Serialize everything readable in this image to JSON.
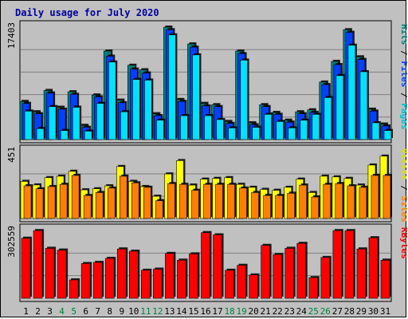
{
  "chart_data": {
    "type": "bar",
    "title": "Daily usage for July 2020",
    "categories": [
      "1",
      "2",
      "3",
      "4",
      "5",
      "6",
      "7",
      "8",
      "9",
      "10",
      "11",
      "12",
      "13",
      "14",
      "15",
      "16",
      "17",
      "18",
      "19",
      "20",
      "21",
      "22",
      "23",
      "24",
      "25",
      "26",
      "27",
      "28",
      "29",
      "30",
      "31"
    ],
    "weekend_days": [
      "4",
      "5",
      "11",
      "12",
      "18",
      "19",
      "25",
      "26"
    ],
    "panels": [
      {
        "id": "hits-files-pages",
        "max_label": "17403",
        "ymax": 17403,
        "right_labels": [
          {
            "text": "Pages",
            "color": "#00c0d0"
          },
          {
            "text": " / ",
            "color": "#000000"
          },
          {
            "text": "Files",
            "color": "#0040ff"
          },
          {
            "text": " / ",
            "color": "#000000"
          },
          {
            "text": "Hits",
            "color": "#008080"
          }
        ],
        "series": [
          {
            "name": "Hits",
            "color": "#008080",
            "values": [
              5900,
              4300,
              7600,
              5000,
              7400,
              2200,
              6900,
              13700,
              6100,
              11500,
              10800,
              4000,
              17400,
              6200,
              14800,
              5600,
              5400,
              2800,
              13700,
              2600,
              5400,
              4200,
              3000,
              4300,
              4600,
              8900,
              12100,
              17000,
              12800,
              4700,
              2400
            ]
          },
          {
            "name": "Files",
            "color": "#0040ff",
            "values": [
              5600,
              4000,
              7200,
              4700,
              7000,
              1900,
              6600,
              12900,
              5700,
              10900,
              10300,
              3700,
              17000,
              5900,
              14300,
              5200,
              5100,
              2500,
              13300,
              2300,
              5100,
              3900,
              2700,
              4000,
              4200,
              8500,
              11600,
              16600,
              12400,
              4400,
              2100
            ]
          },
          {
            "name": "Pages",
            "color": "#00e0ff",
            "values": [
              4400,
              1700,
              5100,
              1400,
              5000,
              1300,
              5600,
              12000,
              4300,
              9300,
              9200,
              3000,
              16200,
              3700,
              13100,
              3700,
              3100,
              1800,
              12300,
              1900,
              3900,
              2800,
              1800,
              3000,
              3900,
              6500,
              9900,
              14600,
              10500,
              2600,
              1400
            ]
          }
        ]
      },
      {
        "id": "visits-sites",
        "max_label": "451",
        "ymax": 451,
        "right_labels": [
          {
            "text": "Sites",
            "color": "#ff8000"
          },
          {
            "text": " / ",
            "color": "#000000"
          },
          {
            "text": "Visits",
            "color": "#e0e000"
          }
        ],
        "series": [
          {
            "name": "Visits",
            "color": "#ffff00",
            "values": [
              250,
              226,
              275,
              285,
              318,
              193,
              200,
              220,
              350,
              250,
              215,
              150,
              300,
              390,
              225,
              265,
              270,
              275,
              230,
              210,
              196,
              190,
              210,
              265,
              175,
              285,
              280,
              270,
              225,
              360,
              420
            ]
          },
          {
            "name": "Sites",
            "color": "#ff8000",
            "values": [
              220,
              200,
              215,
              230,
              290,
              155,
              175,
              205,
              285,
              240,
              210,
              120,
              235,
              230,
              190,
              230,
              230,
              230,
              205,
              175,
              155,
              155,
              170,
              225,
              145,
              230,
              235,
              220,
              210,
              290,
              290
            ]
          }
        ]
      },
      {
        "id": "kbytes",
        "max_label": "302559",
        "ymax": 302559,
        "right_labels": [
          {
            "text": "KBytes",
            "color": "#ff0000"
          }
        ],
        "series": [
          {
            "name": "KBytes",
            "color": "#ff0000",
            "values": [
              268000,
              302000,
              223000,
              215000,
              82000,
              155000,
              160000,
              178000,
              220000,
              210000,
              125000,
              130000,
              200000,
              170000,
              198000,
              293000,
              283000,
              125000,
              147000,
              104000,
              236000,
              195000,
              223000,
              245000,
              92000,
              182000,
              302000,
              302000,
              220000,
              270000,
              170000
            ]
          }
        ]
      }
    ]
  },
  "colors": {
    "title": "#0000a0",
    "axis_label": "#000000",
    "weekday": "#000000",
    "weekend": "#008040",
    "panel_bg": "#c0c0c0",
    "gridline": "#808080"
  }
}
